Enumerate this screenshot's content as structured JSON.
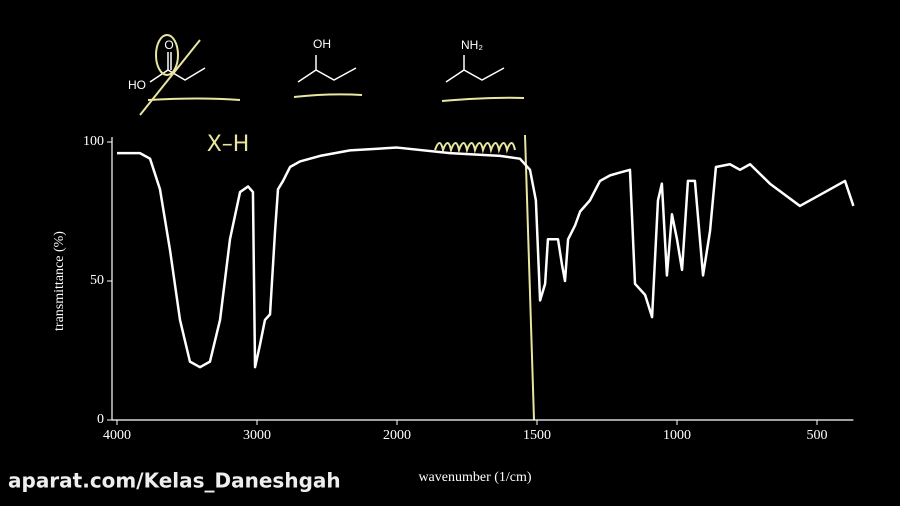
{
  "chart_data": {
    "type": "line",
    "x_label": "wavenumber (1/cm)",
    "y_label": "transmittance (%)",
    "annotations": [
      "X–H",
      "O",
      "HO",
      "OH",
      "NH₂"
    ],
    "watermark": "aparat.com/Kelas_Daneshgah",
    "x": [
      4000,
      3836,
      3764,
      3693,
      3621,
      3550,
      3479,
      3407,
      3336,
      3264,
      3193,
      3121,
      3064,
      3029,
      3014,
      2979,
      2943,
      2907,
      2871,
      2850,
      2814,
      2764,
      2693,
      2550,
      2336,
      2000,
      1811,
      1632,
      1561,
      1525,
      1504,
      1489,
      1471,
      1461,
      1425,
      1411,
      1400,
      1389,
      1364,
      1346,
      1311,
      1275,
      1239,
      1204,
      1168,
      1150,
      1114,
      1089,
      1068,
      1054,
      1036,
      1018,
      1000,
      982,
      961,
      936,
      907,
      882,
      861,
      811,
      775,
      739,
      668,
      561,
      489,
      400,
      370
    ],
    "series": [
      {
        "color": "#ffffff",
        "values": [
          96,
          96,
          94,
          83,
          61,
          36,
          21,
          19,
          21,
          36,
          65,
          82,
          84,
          82,
          19,
          27,
          36,
          38,
          68,
          83,
          86,
          91,
          93,
          95,
          97,
          98,
          96,
          95,
          94,
          90,
          79,
          43,
          49,
          65,
          65,
          56,
          50,
          65,
          70,
          75,
          79,
          86,
          88,
          89,
          90,
          49,
          45,
          37,
          79,
          85,
          52,
          74,
          65,
          54,
          86,
          86,
          52,
          68,
          91,
          92,
          90,
          92,
          85,
          77,
          81,
          86,
          77
        ]
      }
    ],
    "xlim": [
      4000,
      370
    ],
    "xticks": [
      4000,
      3000,
      2000,
      1500,
      1000,
      500
    ],
    "ylim": [
      0,
      100
    ],
    "yticks": [
      0,
      50,
      100
    ]
  }
}
